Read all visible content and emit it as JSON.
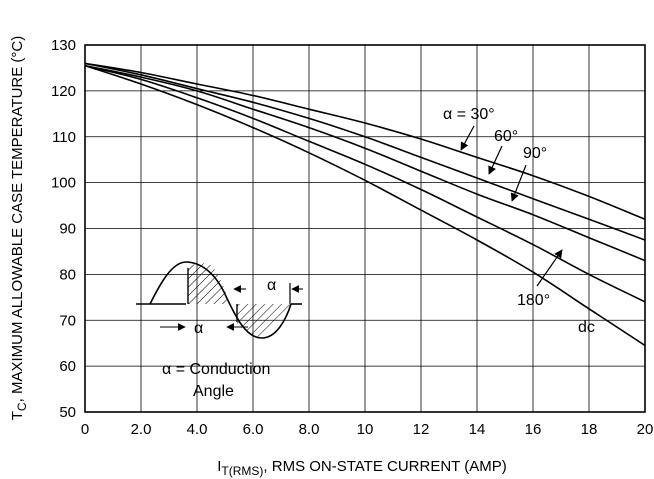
{
  "chart_data": {
    "type": "line",
    "xlabel": {
      "main": "I",
      "sub": "T(RMS)",
      "rest": ", RMS ON-STATE CURRENT (AMP)"
    },
    "ylabel": {
      "main": "T",
      "sub": "C",
      "rest": ", MAXIMUM ALLOWABLE CASE TEMPERATURE (°C)"
    },
    "xlim": [
      0,
      20
    ],
    "ylim": [
      50,
      130
    ],
    "xticks": [
      0,
      2,
      4,
      6,
      8,
      10,
      12,
      14,
      16,
      18,
      20
    ],
    "xtick_labels": [
      "0",
      "2.0",
      "4.0",
      "6.0",
      "8.0",
      "10",
      "12",
      "14",
      "16",
      "18",
      "20"
    ],
    "yticks": [
      50,
      60,
      70,
      80,
      90,
      100,
      110,
      120,
      130
    ],
    "ytick_labels": [
      "50",
      "60",
      "70",
      "80",
      "90",
      "100",
      "110",
      "120",
      "130"
    ],
    "grid": true,
    "series": [
      {
        "name": "α = 30°",
        "x": [
          0,
          2,
          4,
          6,
          8,
          10,
          12,
          14,
          16,
          18,
          20
        ],
        "y": [
          126,
          124,
          121.5,
          119,
          116,
          113,
          109.5,
          105.5,
          101.5,
          97,
          92
        ]
      },
      {
        "name": "60°",
        "x": [
          0,
          2,
          4,
          6,
          8,
          10,
          12,
          14,
          16,
          18,
          20
        ],
        "y": [
          126,
          123.5,
          120.5,
          117.5,
          114,
          110,
          105.5,
          101,
          96.5,
          92,
          87.5
        ]
      },
      {
        "name": "90°",
        "x": [
          0,
          2,
          4,
          6,
          8,
          10,
          12,
          14,
          16,
          18,
          20
        ],
        "y": [
          125.5,
          123,
          120,
          116,
          112,
          107.5,
          102.5,
          97.5,
          93,
          88,
          83
        ]
      },
      {
        "name": "180°",
        "x": [
          0,
          2,
          4,
          6,
          8,
          10,
          12,
          14,
          16,
          18,
          20
        ],
        "y": [
          125.5,
          122.5,
          118.5,
          114,
          109,
          104,
          98.5,
          92.5,
          86.5,
          80,
          74
        ]
      },
      {
        "name": "dc",
        "x": [
          0,
          2,
          4,
          6,
          8,
          10,
          12,
          14,
          16,
          18,
          20
        ],
        "y": [
          125.5,
          121.5,
          117,
          112,
          106.5,
          100.5,
          94,
          87.5,
          80.5,
          72.5,
          64.5
        ]
      }
    ],
    "annotations": {
      "alpha_30": "α = 30°",
      "deg_60": "60°",
      "deg_90": "90°",
      "deg_180": "180°",
      "dc": "dc",
      "inset_alpha_1": "α",
      "inset_alpha_2": "α",
      "inset_caption_1": "α =  Conduction",
      "inset_caption_2": "Angle"
    }
  }
}
